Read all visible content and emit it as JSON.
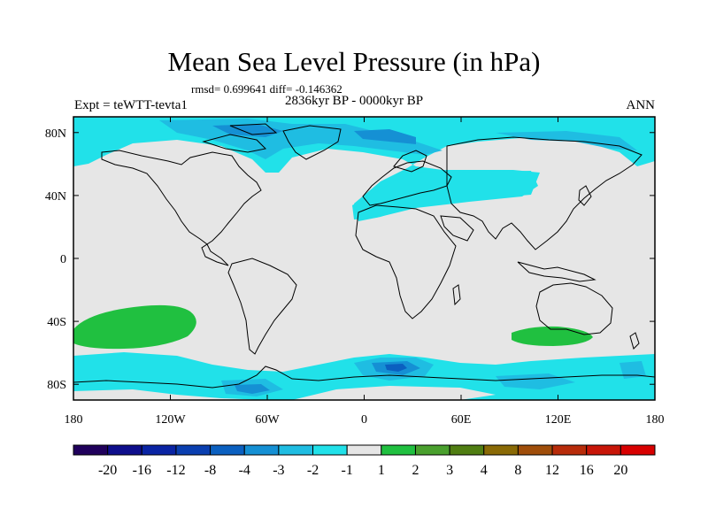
{
  "title": "Mean Sea Level Pressure (in hPa)",
  "stats": "rmsd= 0.699641 diff= -0.146362",
  "experiment": "Expt = teWTT-tevta1",
  "period": "2836kyr BP - 0000kyr BP",
  "season": "ANN",
  "map": {
    "lat_ticks": [
      {
        "label": "80N",
        "lat": 80
      },
      {
        "label": "40N",
        "lat": 40
      },
      {
        "label": "0",
        "lat": 0
      },
      {
        "label": "40S",
        "lat": -40
      },
      {
        "label": "80S",
        "lat": -80
      }
    ],
    "lon_ticks": [
      {
        "label": "180",
        "lon": -180
      },
      {
        "label": "120W",
        "lon": -120
      },
      {
        "label": "60W",
        "lon": -60
      },
      {
        "label": "0",
        "lon": 0
      },
      {
        "label": "60E",
        "lon": 60
      },
      {
        "label": "120E",
        "lon": 120
      },
      {
        "label": "180",
        "lon": 180
      }
    ],
    "background_color": "#e6e6e6",
    "coast_color": "#000000"
  },
  "colorbar": {
    "labels": [
      "-20",
      "-16",
      "-12",
      "-8",
      "-4",
      "-3",
      "-2",
      "-1",
      "1",
      "2",
      "3",
      "4",
      "8",
      "12",
      "16",
      "20"
    ],
    "colors": [
      "#20005c",
      "#0e0e8c",
      "#0a24a4",
      "#0a3fb0",
      "#0b60c0",
      "#1590d4",
      "#1fbde2",
      "#21e1e9",
      "#e6e6e6",
      "#20c040",
      "#4aa02e",
      "#507e12",
      "#8a6a06",
      "#a04e0a",
      "#b82c0a",
      "#c81608",
      "#d80000"
    ]
  }
}
